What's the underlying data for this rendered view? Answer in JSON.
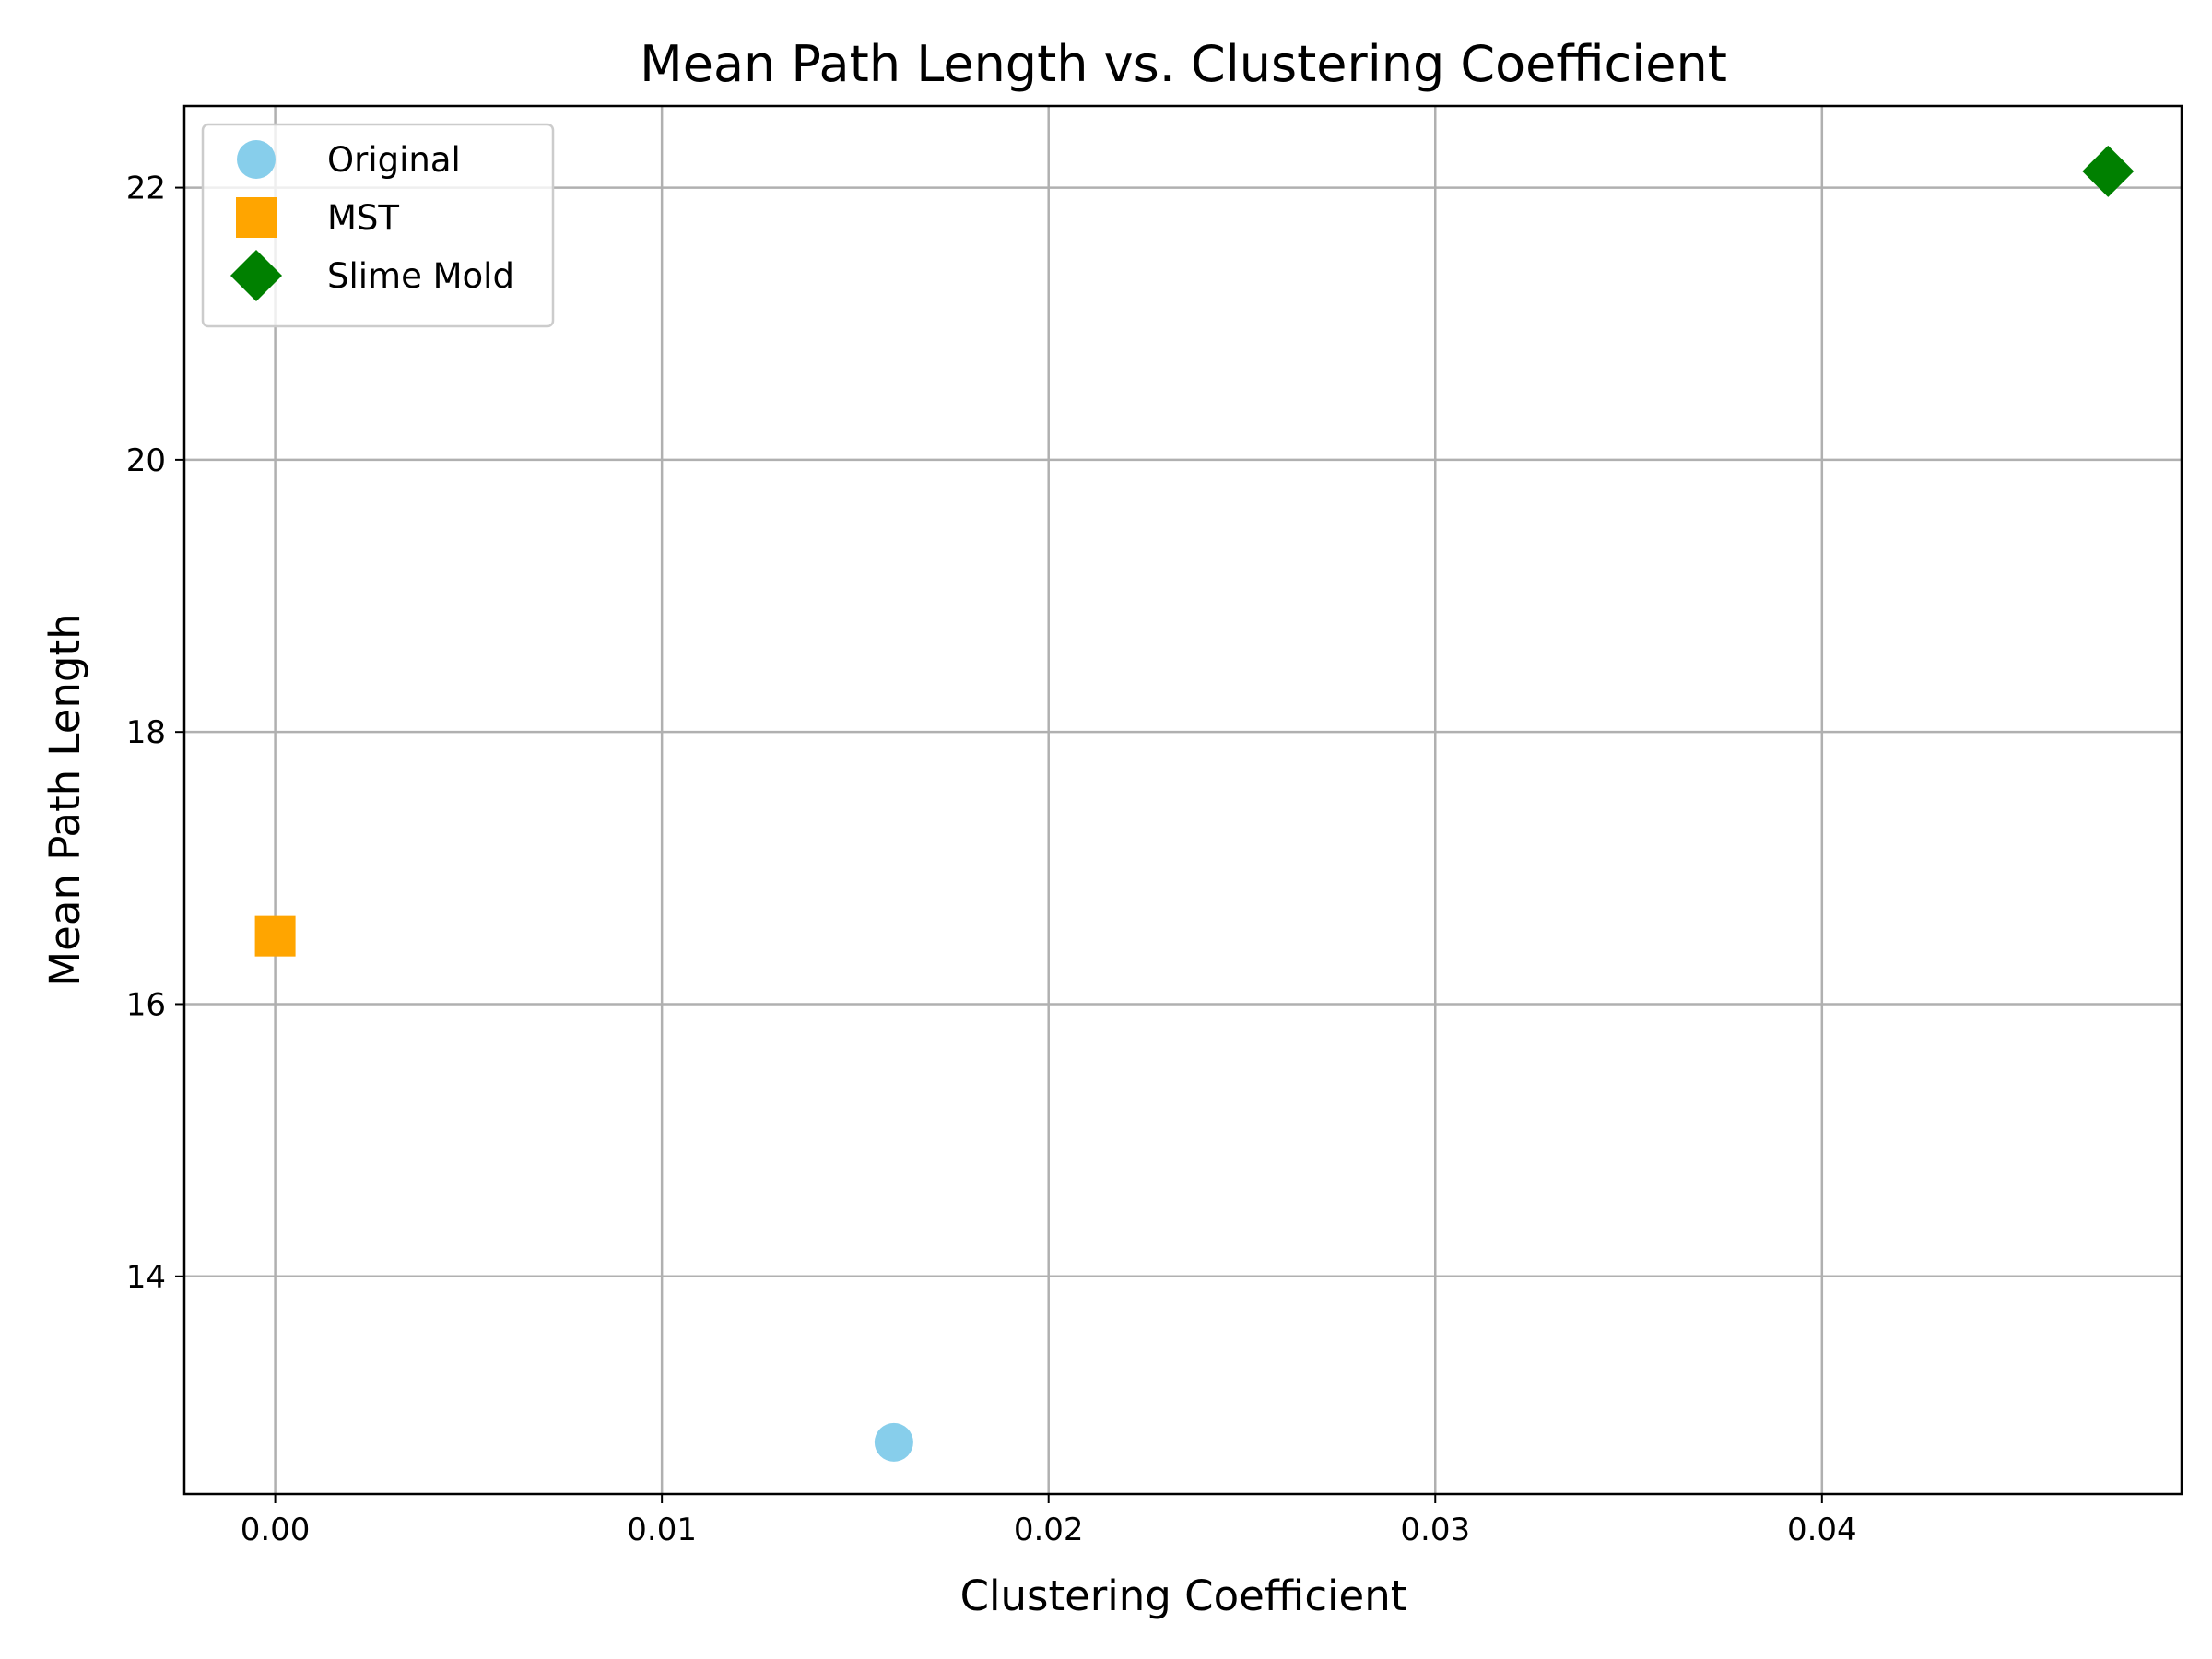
{
  "chart_data": {
    "type": "scatter",
    "title": "Mean Path Length vs. Clustering Coefficient",
    "xlabel": "Clustering Coefficient",
    "ylabel": "Mean Path Length",
    "xlim": [
      -0.00235,
      0.0493
    ],
    "ylim": [
      12.4,
      22.6
    ],
    "xticks": [
      0.0,
      0.01,
      0.02,
      0.03,
      0.04
    ],
    "xtick_labels": [
      "0.00",
      "0.01",
      "0.02",
      "0.03",
      "0.04"
    ],
    "yticks": [
      14,
      16,
      18,
      20,
      22
    ],
    "ytick_labels": [
      "14",
      "16",
      "18",
      "20",
      "22"
    ],
    "grid": true,
    "legend_position": "top-left",
    "series": [
      {
        "name": "Original",
        "marker": "circle",
        "color": "#87ceeb",
        "x": [
          0.016
        ],
        "y": [
          12.78
        ]
      },
      {
        "name": "MST",
        "marker": "square",
        "color": "#ffa500",
        "x": [
          0.0
        ],
        "y": [
          16.5
        ]
      },
      {
        "name": "Slime Mold",
        "marker": "diamond",
        "color": "#008000",
        "x": [
          0.0474
        ],
        "y": [
          22.12
        ]
      }
    ]
  }
}
